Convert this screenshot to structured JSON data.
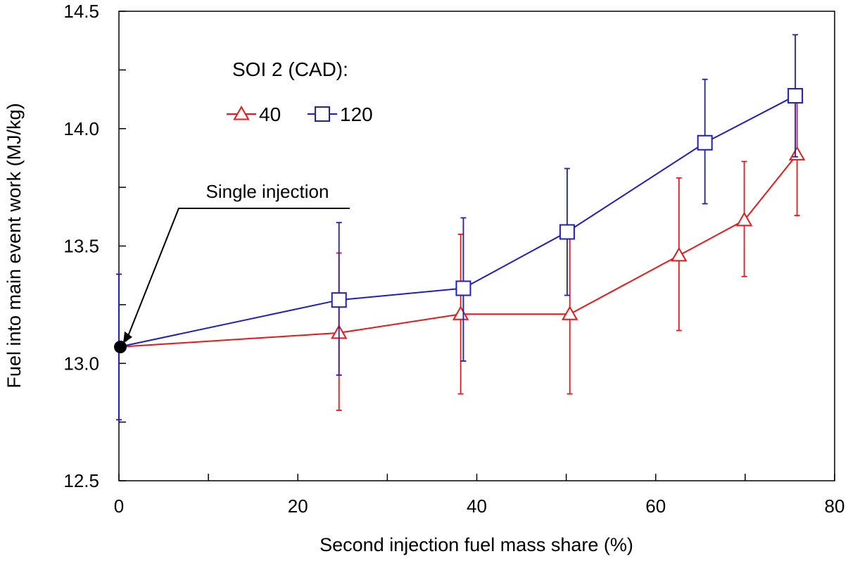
{
  "chart_data": {
    "type": "line",
    "title": "",
    "xlabel": "Second injection fuel mass share (%)",
    "ylabel": "Fuel into main event work (MJ/kg)",
    "xlim": [
      0,
      80
    ],
    "ylim": [
      12.5,
      14.5
    ],
    "x_ticks": [
      0,
      20,
      40,
      60,
      80
    ],
    "x_tick_labels": [
      "0",
      "20",
      "40",
      "60",
      "80"
    ],
    "y_ticks": [
      12.5,
      13.0,
      13.5,
      14.0,
      14.5
    ],
    "y_tick_labels": [
      "12.5",
      "13.0",
      "13.5",
      "14.0",
      "14.5"
    ],
    "grid": false,
    "legend": {
      "title": "SOI 2 (CAD):",
      "placement": "top-left"
    },
    "single_injection": {
      "label": "Single injection",
      "x": 0,
      "y": 13.07,
      "err_low": 12.76,
      "err_high": 13.38,
      "color": "#000000"
    },
    "series": [
      {
        "name": "40",
        "color": "#e31a1c",
        "marker": "triangle",
        "points": [
          {
            "x": 0,
            "y": 13.07,
            "err_low": 12.76,
            "err_high": 13.38
          },
          {
            "x": 24.6,
            "y": 13.13,
            "err_low": 12.8,
            "err_high": 13.47
          },
          {
            "x": 38.2,
            "y": 13.21,
            "err_low": 12.87,
            "err_high": 13.55
          },
          {
            "x": 50.4,
            "y": 13.21,
            "err_low": 12.87,
            "err_high": 13.55
          },
          {
            "x": 62.6,
            "y": 13.46,
            "err_low": 13.14,
            "err_high": 13.79
          },
          {
            "x": 69.9,
            "y": 13.61,
            "err_low": 13.37,
            "err_high": 13.86
          },
          {
            "x": 75.8,
            "y": 13.89,
            "err_low": 13.63,
            "err_high": 14.15
          }
        ]
      },
      {
        "name": "120",
        "color": "#1f1fbf",
        "marker": "square",
        "points": [
          {
            "x": 0,
            "y": 13.07,
            "err_low": 12.76,
            "err_high": 13.38
          },
          {
            "x": 24.6,
            "y": 13.27,
            "err_low": 12.95,
            "err_high": 13.6
          },
          {
            "x": 38.5,
            "y": 13.32,
            "err_low": 13.01,
            "err_high": 13.62
          },
          {
            "x": 50.1,
            "y": 13.56,
            "err_low": 13.29,
            "err_high": 13.83
          },
          {
            "x": 65.5,
            "y": 13.94,
            "err_low": 13.68,
            "err_high": 14.21
          },
          {
            "x": 75.6,
            "y": 14.14,
            "err_low": 13.88,
            "err_high": 14.4
          }
        ]
      }
    ]
  }
}
